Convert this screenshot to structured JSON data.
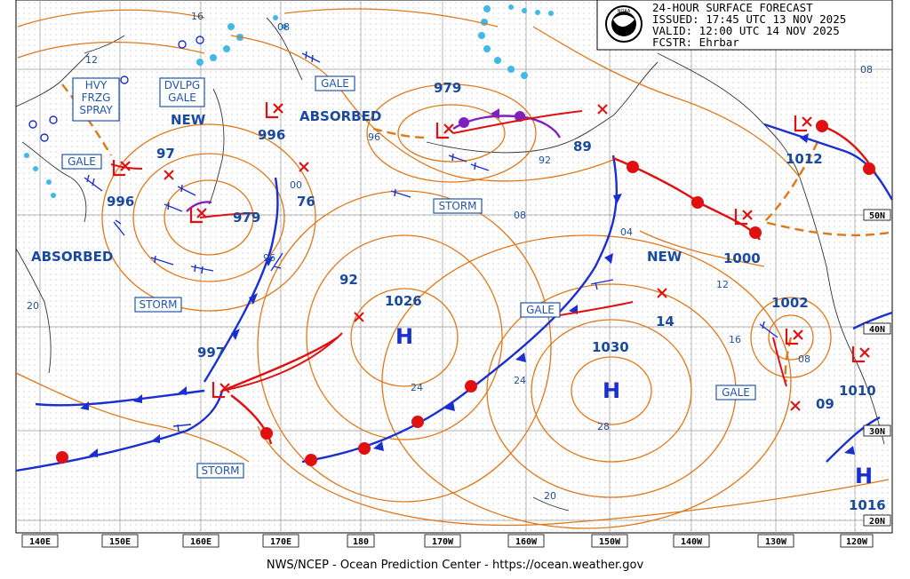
{
  "header": {
    "line1": "24-HOUR SURFACE FORECAST",
    "line2": "ISSUED: 17:45 UTC 13 NOV 2025",
    "line3": "VALID:  12:00 UTC 14 NOV 2025",
    "line4": "FCSTR:  Ehrbar"
  },
  "footer": "NWS/NCEP - Ocean Prediction Center - https://ocean.weather.gov",
  "longitudes": [
    "140E",
    "150E",
    "160E",
    "170E",
    "180",
    "170W",
    "160W",
    "150W",
    "140W",
    "130W",
    "120W"
  ],
  "latitudes_right": [
    "50N",
    "40N",
    "30N",
    "20N"
  ],
  "boxed_labels": {
    "hvy": [
      "HVY",
      "FRZG",
      "SPRAY"
    ],
    "dvlpg": [
      "DVLPG",
      "GALE"
    ],
    "gale_nw": "GALE",
    "gale_west": "GALE",
    "gale_bering": "GALE",
    "storm_w": "STORM",
    "storm_aleut": "STORM",
    "storm_s": "STORM",
    "gale_mid": "GALE",
    "gale_east": "GALE"
  },
  "plain_labels": {
    "new1": "NEW",
    "new2": "NEW",
    "absorbed1": "ABSORBED",
    "absorbed2": "ABSORBED"
  },
  "pressures": {
    "p979a": "979",
    "p979b": "979",
    "p996a": "996",
    "p996b": "996",
    "p97": "97",
    "p76": "76",
    "p997": "997",
    "p92": "92",
    "p1026": "1026",
    "p89": "89",
    "p1012": "1012",
    "p1000": "1000",
    "p1002": "1002",
    "p14": "14",
    "p1030": "1030",
    "p09": "09",
    "p1010": "1010",
    "p1016": "1016"
  },
  "centers": {
    "h1": "H",
    "h2": "H",
    "h3": "H"
  },
  "iso_labels": {
    "i16": "16",
    "i08a": "08",
    "i12": "12",
    "i96a": "96",
    "i92": "92",
    "i00": "00",
    "i96b": "96",
    "i08b": "08",
    "i04": "04",
    "i12b": "12",
    "i16b": "16",
    "i08c": "08",
    "i20a": "20",
    "i24a": "24",
    "i24b": "24",
    "i28": "28",
    "i20b": "20",
    "i08d": "08"
  },
  "colors": {
    "isobar": "#e07818",
    "cold_front": "#1a2fd0",
    "warm_front": "#e01010",
    "occluded": "#8020c0",
    "ice": "#40b8e8",
    "label_box": "#2255aa"
  }
}
